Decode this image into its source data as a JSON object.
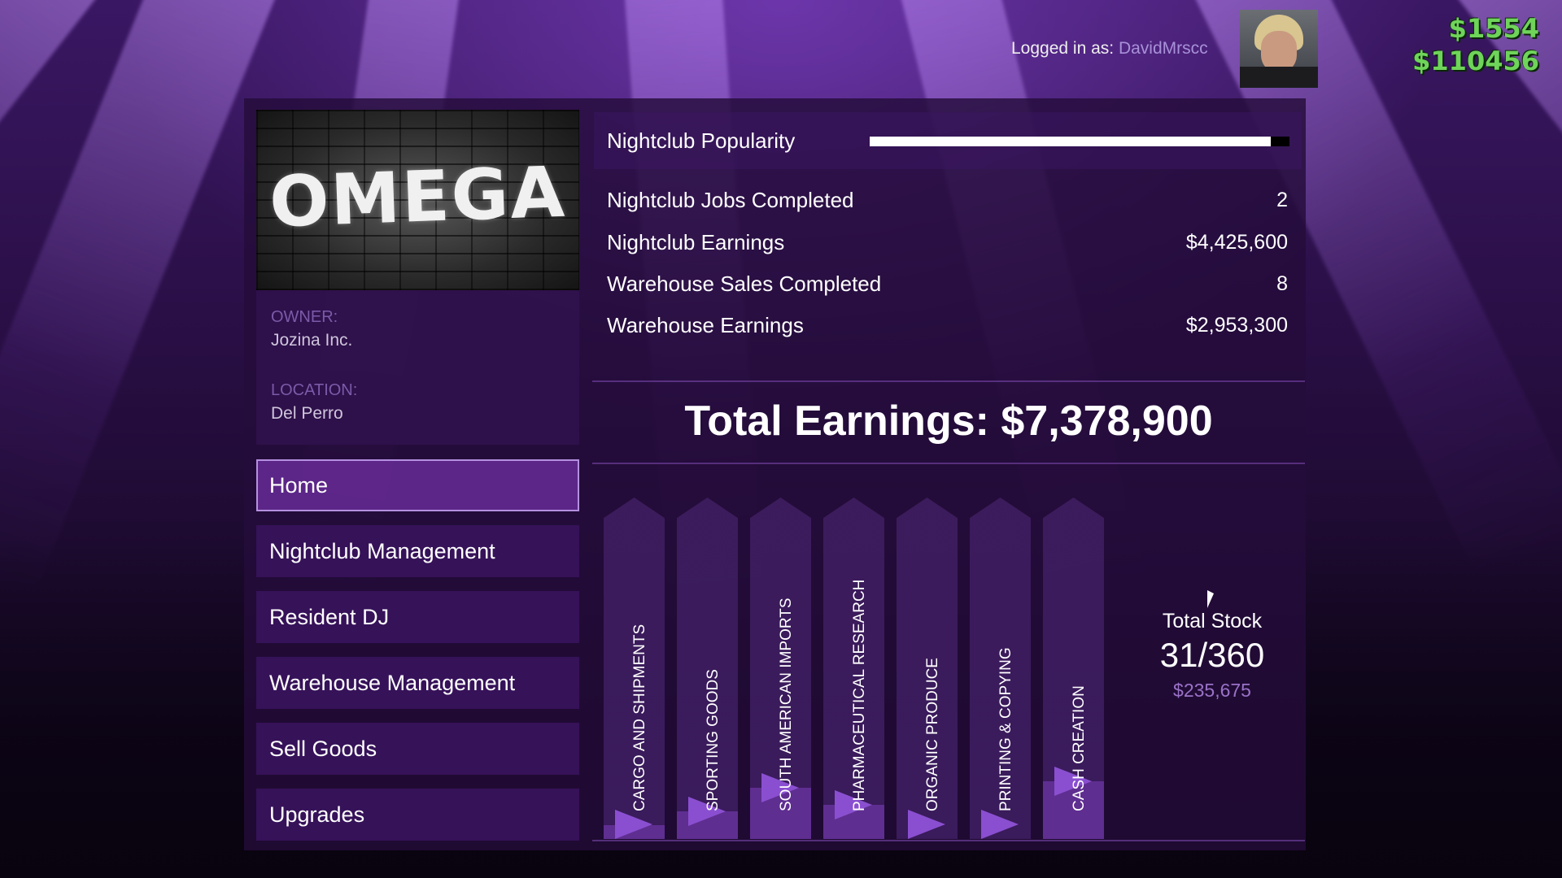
{
  "hud": {
    "login_prefix": "Logged in as:",
    "username": "DavidMrscc",
    "cash_wallet": "$1554",
    "cash_bank": "$110456"
  },
  "business": {
    "logo_text": "OMEGA",
    "owner_label": "OWNER:",
    "owner_value": "Jozina Inc.",
    "location_label": "LOCATION:",
    "location_value": "Del Perro"
  },
  "nav": {
    "items": [
      {
        "label": "Home",
        "active": true
      },
      {
        "label": "Nightclub Management",
        "active": false
      },
      {
        "label": "Resident DJ",
        "active": false
      },
      {
        "label": "Warehouse Management",
        "active": false
      },
      {
        "label": "Sell Goods",
        "active": false
      },
      {
        "label": "Upgrades",
        "active": false
      }
    ]
  },
  "popularity": {
    "label": "Nightclub Popularity",
    "fraction": 0.955
  },
  "stats": [
    {
      "label": "Nightclub Jobs Completed",
      "value": "2"
    },
    {
      "label": "Nightclub Earnings",
      "value": "$4,425,600"
    },
    {
      "label": "Warehouse Sales Completed",
      "value": "8"
    },
    {
      "label": "Warehouse Earnings",
      "value": "$2,953,300"
    }
  ],
  "total_earnings": "Total Earnings: $7,378,900",
  "stock": {
    "categories": [
      {
        "label": "CARGO AND SHIPMENTS",
        "fill_fraction": 0.04
      },
      {
        "label": "SPORTING GOODS",
        "fill_fraction": 0.08
      },
      {
        "label": "SOUTH AMERICAN IMPORTS",
        "fill_fraction": 0.15
      },
      {
        "label": "PHARMACEUTICAL RESEARCH",
        "fill_fraction": 0.1
      },
      {
        "label": "ORGANIC PRODUCE",
        "fill_fraction": 0.0
      },
      {
        "label": "PRINTING & COPYING",
        "fill_fraction": 0.0
      },
      {
        "label": "CASH CREATION",
        "fill_fraction": 0.17
      }
    ],
    "total_label": "Total Stock",
    "total_value": "31/360",
    "total_money": "$235,675"
  },
  "colors": {
    "accent": "#8a4fd0",
    "cash_green": "#6fd45a",
    "username": "#a891d8"
  }
}
